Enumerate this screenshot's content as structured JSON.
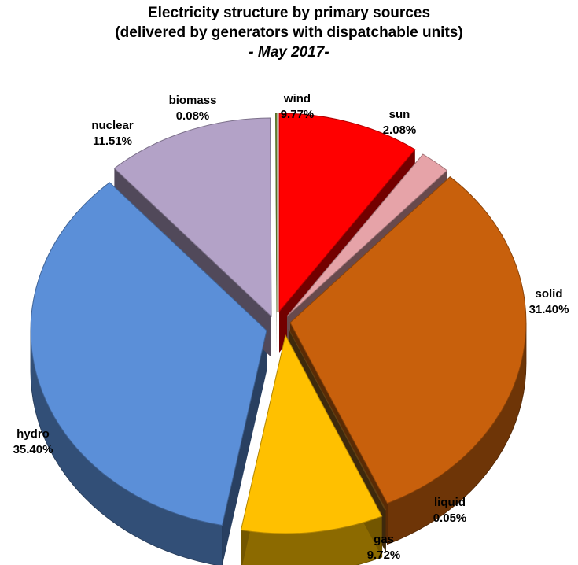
{
  "chart_data": {
    "type": "pie",
    "title": "Electricity structure by primary sources",
    "subtitle": "(delivered by generators with dispatchable units)",
    "period": "- May 2017-",
    "slices": [
      {
        "name": "wind",
        "value": 9.77,
        "label": "9.77%",
        "color": "#ff0000"
      },
      {
        "name": "sun",
        "value": 2.08,
        "label": "2.08%",
        "color": "#e6a3a8"
      },
      {
        "name": "solid",
        "value": 31.4,
        "label": "31.40%",
        "color": "#c8600c"
      },
      {
        "name": "liquid",
        "value": 0.05,
        "label": "0.05%",
        "color": "#8a5a1a"
      },
      {
        "name": "gas",
        "value": 9.72,
        "label": "9.72%",
        "color": "#ffc000"
      },
      {
        "name": "hydro",
        "value": 35.4,
        "label": "35.40%",
        "color": "#5b8fd8"
      },
      {
        "name": "nuclear",
        "value": 11.51,
        "label": "11.51%",
        "color": "#b3a2c7"
      },
      {
        "name": "biomass",
        "value": 0.08,
        "label": "0.08%",
        "color": "#7a9a3a"
      }
    ],
    "start_angle": "12 o'clock",
    "direction": "clockwise",
    "style": "3D exploded pie",
    "legend": "none"
  }
}
